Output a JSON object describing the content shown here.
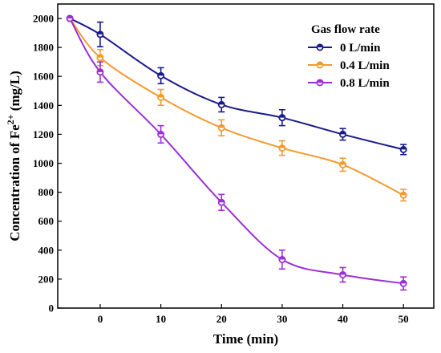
{
  "chart_data": {
    "type": "line",
    "xlabel": "Time (min)",
    "ylabel_main": "Concentration of Fe",
    "ylabel_sup": "2+",
    "ylabel_unit": " (mg/L)",
    "xlim": [
      -7,
      55
    ],
    "ylim": [
      0,
      2100
    ],
    "xticks": [
      0,
      10,
      20,
      30,
      40,
      50
    ],
    "yticks": [
      0,
      200,
      400,
      600,
      800,
      1000,
      1200,
      1400,
      1600,
      1800,
      2000
    ],
    "legend_title": "Gas flow rate",
    "legend_position": "top-right",
    "series": [
      {
        "name": "0 L/min",
        "color": "#1a1a8c",
        "x": [
          -5,
          0,
          10,
          20,
          30,
          40,
          50
        ],
        "y": [
          2000,
          1890,
          1605,
          1405,
          1315,
          1200,
          1095
        ],
        "err": [
          0,
          85,
          55,
          50,
          55,
          40,
          35
        ]
      },
      {
        "name": "0.4 L/min",
        "color": "#f29a2e",
        "x": [
          -5,
          0,
          10,
          20,
          30,
          40,
          50
        ],
        "y": [
          2000,
          1730,
          1455,
          1245,
          1105,
          990,
          780
        ],
        "err": [
          0,
          55,
          55,
          55,
          50,
          45,
          40
        ]
      },
      {
        "name": "0.8 L/min",
        "color": "#9b2fd6",
        "x": [
          -5,
          0,
          10,
          20,
          30,
          40,
          50
        ],
        "y": [
          2000,
          1630,
          1200,
          730,
          335,
          230,
          170
        ],
        "err": [
          0,
          70,
          60,
          55,
          65,
          50,
          45
        ]
      }
    ]
  }
}
